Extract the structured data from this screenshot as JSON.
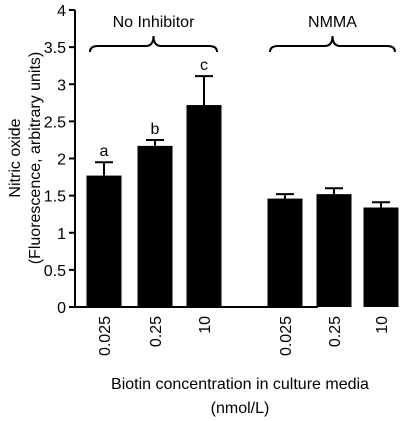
{
  "chart_data": {
    "type": "bar",
    "ylabel_line1": "Nitric oxide",
    "ylabel_line2": "(Fluorescence, arbitrary units)",
    "xlabel_line1": "Biotin concentration in culture media",
    "xlabel_line2": "(nmol/L)",
    "ylim": [
      0,
      4
    ],
    "yticks": [
      "0",
      "0.5",
      "1",
      "1.5",
      "2",
      "2.5",
      "3",
      "3.5",
      "4"
    ],
    "groups": [
      {
        "name": "No Inhibitor",
        "categories": [
          "0.025",
          "0.25",
          "10"
        ],
        "values": [
          1.77,
          2.17,
          2.72
        ],
        "errors": [
          0.18,
          0.08,
          0.39
        ],
        "labels": [
          "a",
          "b",
          "c"
        ]
      },
      {
        "name": "NMMA",
        "categories": [
          "0.025",
          "0.25",
          "10"
        ],
        "values": [
          1.46,
          1.52,
          1.34
        ],
        "errors": [
          0.06,
          0.08,
          0.07
        ],
        "labels": [
          "",
          "",
          ""
        ]
      }
    ],
    "bar_color": "#000000",
    "grid": false
  }
}
